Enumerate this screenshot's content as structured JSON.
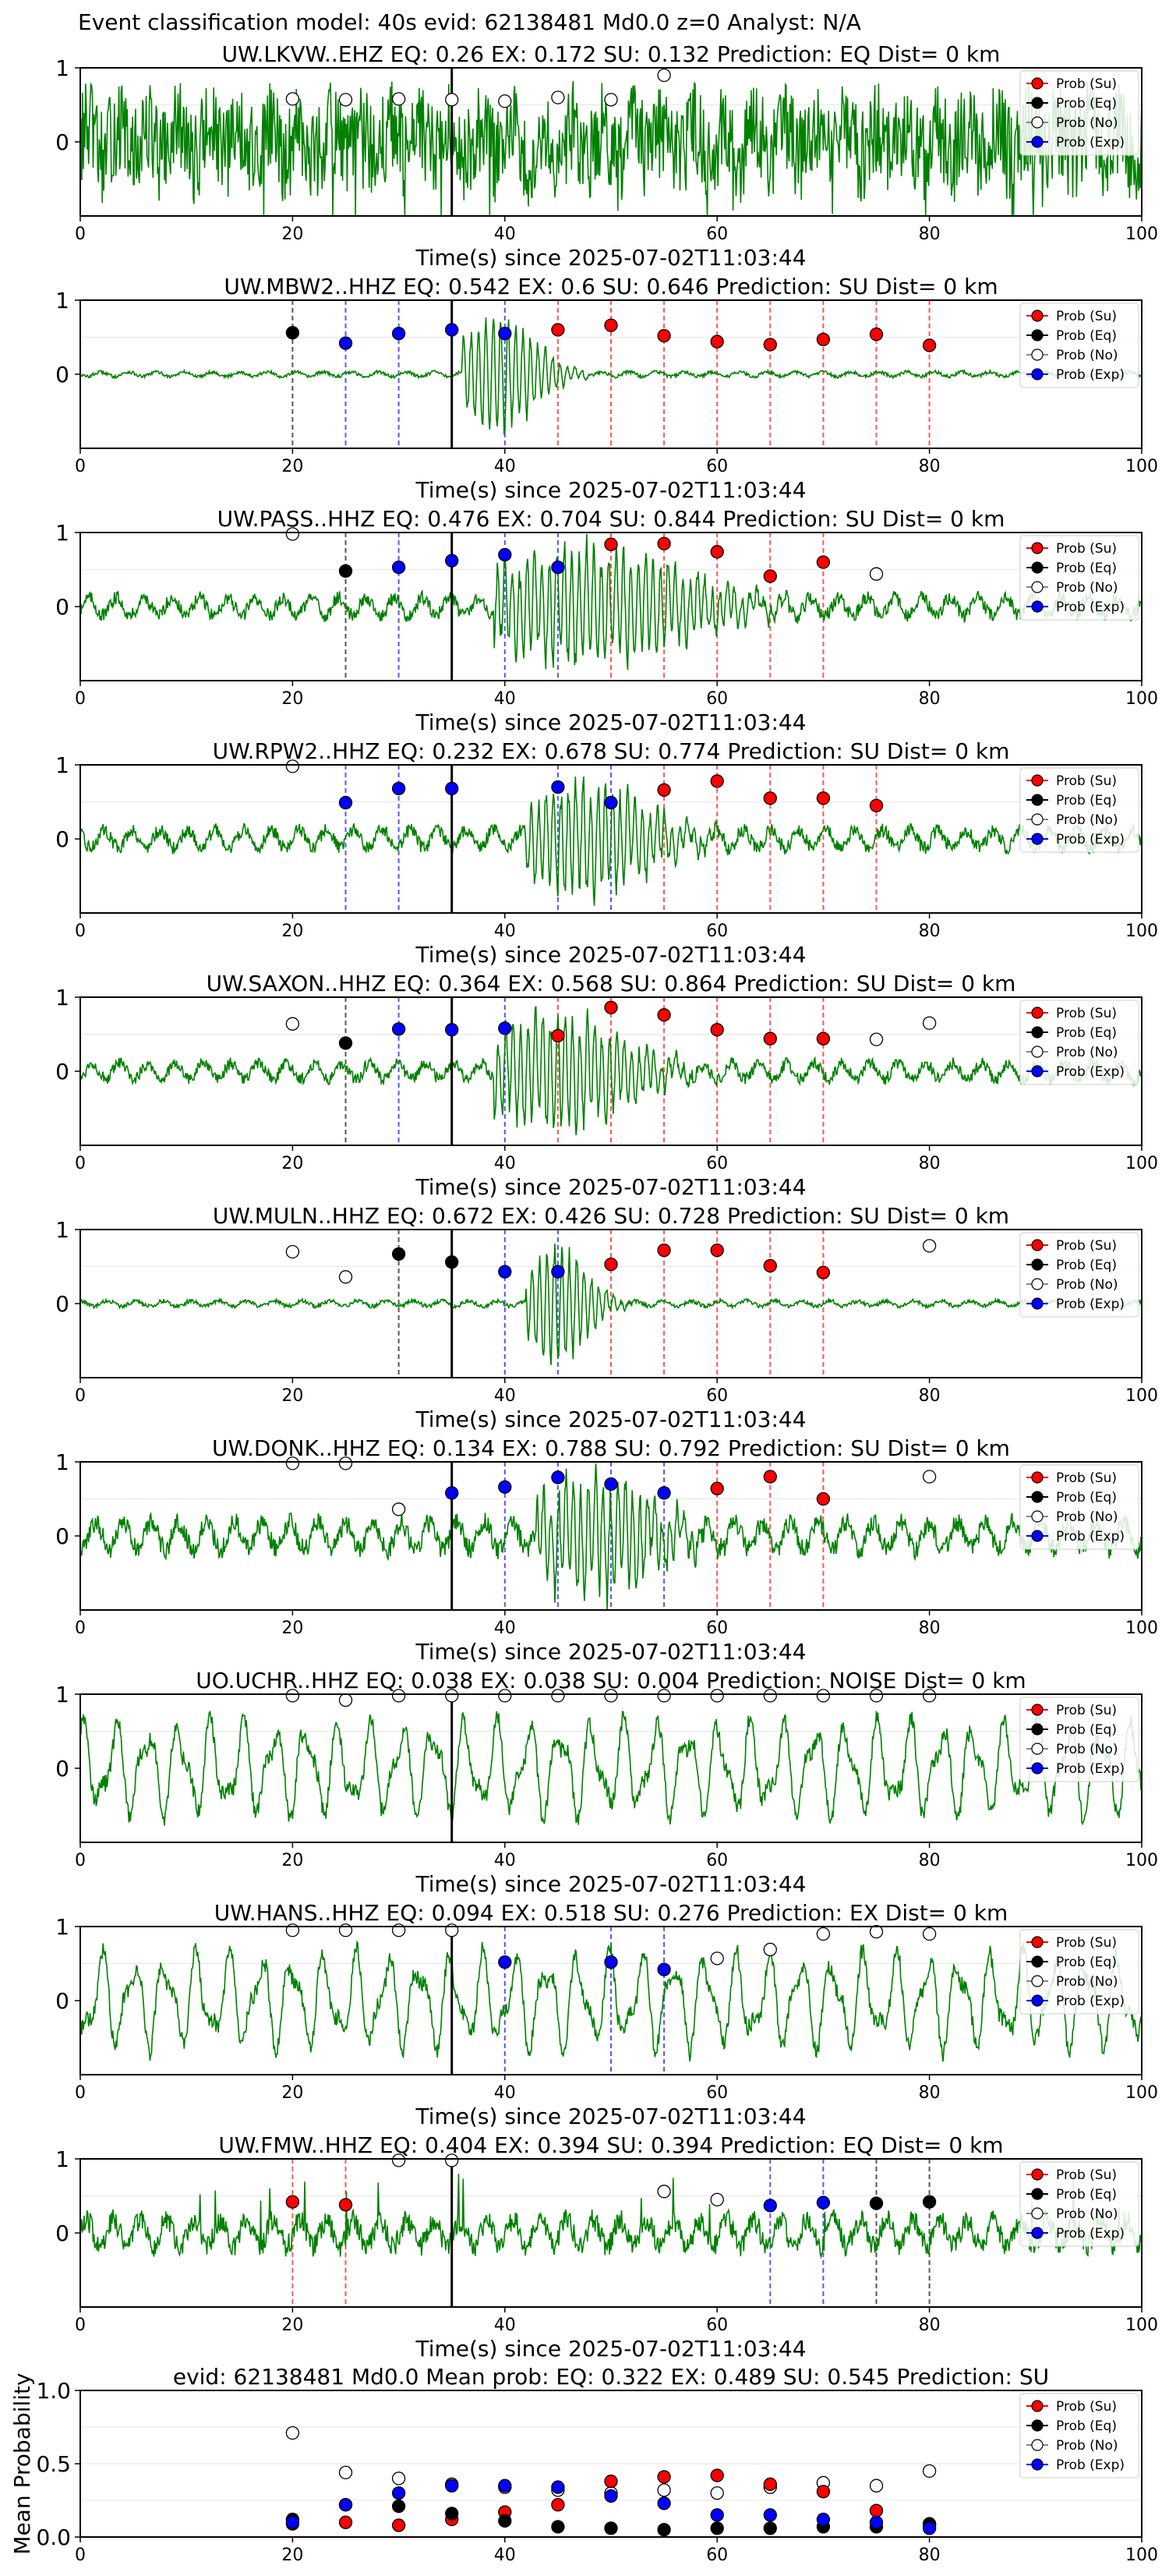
{
  "figure_title": "Event classification model: 40s evid: 62138481 Md0.0 z=0 Analyst: N/A",
  "colors": {
    "waveform": "#008000",
    "su": "#ff0000",
    "eq": "#000000",
    "no": "#ffffff",
    "exp": "#0000ff",
    "arrival_line": "#000000"
  },
  "legend_labels": [
    "Prob (Su)",
    "Prob (Eq)",
    "Prob (No)",
    "Prob (Exp)"
  ],
  "chart_data": {
    "type": "scatter",
    "xlabel": "Time(s) since 2025-07-02T11:03:44",
    "x_ticks": [
      0,
      20,
      40,
      60,
      80,
      100
    ],
    "xlim": [
      0,
      100
    ],
    "arrival_time": 35,
    "panels": [
      {
        "title": "UW.LKVW..EHZ   EQ: 0.26  EX: 0.172  SU: 0.132   Prediction: EQ    Dist= 0 km",
        "signal": "noisy",
        "amp": 0.8,
        "points": [
          {
            "cls": "no",
            "x": 20,
            "y": 0.58
          },
          {
            "cls": "no",
            "x": 25,
            "y": 0.57
          },
          {
            "cls": "no",
            "x": 30,
            "y": 0.58
          },
          {
            "cls": "no",
            "x": 35,
            "y": 0.57
          },
          {
            "cls": "no",
            "x": 40,
            "y": 0.55
          },
          {
            "cls": "no",
            "x": 45,
            "y": 0.6
          },
          {
            "cls": "no",
            "x": 50,
            "y": 0.57
          },
          {
            "cls": "no",
            "x": 55,
            "y": 0.9
          }
        ]
      },
      {
        "title": "UW.MBW2..HHZ   EQ: 0.542  EX: 0.6  SU: 0.646   Prediction: SU    Dist= 0 km",
        "signal": "event",
        "amp": 0.05,
        "event_start": 36,
        "event_end": 48,
        "points": [
          {
            "cls": "eq",
            "x": 20,
            "y": 0.56
          },
          {
            "cls": "exp",
            "x": 25,
            "y": 0.42
          },
          {
            "cls": "exp",
            "x": 30,
            "y": 0.55
          },
          {
            "cls": "exp",
            "x": 35,
            "y": 0.6
          },
          {
            "cls": "exp",
            "x": 40,
            "y": 0.55
          },
          {
            "cls": "su",
            "x": 45,
            "y": 0.6
          },
          {
            "cls": "su",
            "x": 50,
            "y": 0.66
          },
          {
            "cls": "su",
            "x": 55,
            "y": 0.52
          },
          {
            "cls": "su",
            "x": 60,
            "y": 0.44
          },
          {
            "cls": "su",
            "x": 65,
            "y": 0.4
          },
          {
            "cls": "su",
            "x": 70,
            "y": 0.47
          },
          {
            "cls": "su",
            "x": 75,
            "y": 0.54
          },
          {
            "cls": "su",
            "x": 80,
            "y": 0.39
          }
        ]
      },
      {
        "title": "UW.PASS..HHZ   EQ: 0.476  EX: 0.704  SU: 0.844   Prediction: SU    Dist= 0 km",
        "signal": "event",
        "amp": 0.2,
        "event_start": 39,
        "event_end": 70,
        "points": [
          {
            "cls": "no",
            "x": 20,
            "y": 0.98
          },
          {
            "cls": "eq",
            "x": 25,
            "y": 0.48
          },
          {
            "cls": "exp",
            "x": 30,
            "y": 0.53
          },
          {
            "cls": "exp",
            "x": 35,
            "y": 0.62
          },
          {
            "cls": "exp",
            "x": 40,
            "y": 0.7
          },
          {
            "cls": "exp",
            "x": 45,
            "y": 0.53
          },
          {
            "cls": "su",
            "x": 50,
            "y": 0.84
          },
          {
            "cls": "su",
            "x": 55,
            "y": 0.85
          },
          {
            "cls": "su",
            "x": 60,
            "y": 0.74
          },
          {
            "cls": "su",
            "x": 65,
            "y": 0.41
          },
          {
            "cls": "su",
            "x": 70,
            "y": 0.6
          },
          {
            "cls": "no",
            "x": 75,
            "y": 0.44
          }
        ]
      },
      {
        "title": "UW.RPW2..HHZ   EQ: 0.232  EX: 0.678  SU: 0.774   Prediction: SU    Dist= 0 km",
        "signal": "event",
        "amp": 0.2,
        "event_start": 42,
        "event_end": 62,
        "points": [
          {
            "cls": "no",
            "x": 20,
            "y": 0.98
          },
          {
            "cls": "exp",
            "x": 25,
            "y": 0.49
          },
          {
            "cls": "exp",
            "x": 30,
            "y": 0.68
          },
          {
            "cls": "exp",
            "x": 35,
            "y": 0.68
          },
          {
            "cls": "exp",
            "x": 45,
            "y": 0.7
          },
          {
            "cls": "exp",
            "x": 50,
            "y": 0.49
          },
          {
            "cls": "su",
            "x": 55,
            "y": 0.66
          },
          {
            "cls": "su",
            "x": 60,
            "y": 0.78
          },
          {
            "cls": "su",
            "x": 65,
            "y": 0.55
          },
          {
            "cls": "su",
            "x": 70,
            "y": 0.55
          },
          {
            "cls": "su",
            "x": 75,
            "y": 0.45
          }
        ]
      },
      {
        "title": "UW.SAXON..HHZ   EQ: 0.364  EX: 0.568  SU: 0.864   Prediction: SU    Dist= 0 km",
        "signal": "event",
        "amp": 0.18,
        "event_start": 39,
        "event_end": 60,
        "points": [
          {
            "cls": "no",
            "x": 20,
            "y": 0.64
          },
          {
            "cls": "eq",
            "x": 25,
            "y": 0.38
          },
          {
            "cls": "exp",
            "x": 30,
            "y": 0.57
          },
          {
            "cls": "exp",
            "x": 35,
            "y": 0.56
          },
          {
            "cls": "exp",
            "x": 40,
            "y": 0.58
          },
          {
            "cls": "su",
            "x": 45,
            "y": 0.48
          },
          {
            "cls": "su",
            "x": 50,
            "y": 0.86
          },
          {
            "cls": "su",
            "x": 55,
            "y": 0.76
          },
          {
            "cls": "su",
            "x": 60,
            "y": 0.56
          },
          {
            "cls": "su",
            "x": 65,
            "y": 0.44
          },
          {
            "cls": "su",
            "x": 70,
            "y": 0.44
          },
          {
            "cls": "no",
            "x": 75,
            "y": 0.43
          },
          {
            "cls": "no",
            "x": 80,
            "y": 0.65
          }
        ]
      },
      {
        "title": "UW.MULN..HHZ   EQ: 0.672  EX: 0.426  SU: 0.728   Prediction: SU    Dist= 0 km",
        "signal": "event",
        "amp": 0.06,
        "event_start": 42,
        "event_end": 52,
        "points": [
          {
            "cls": "no",
            "x": 20,
            "y": 0.7
          },
          {
            "cls": "no",
            "x": 25,
            "y": 0.36
          },
          {
            "cls": "eq",
            "x": 30,
            "y": 0.67
          },
          {
            "cls": "eq",
            "x": 35,
            "y": 0.56
          },
          {
            "cls": "exp",
            "x": 40,
            "y": 0.43
          },
          {
            "cls": "exp",
            "x": 45,
            "y": 0.43
          },
          {
            "cls": "su",
            "x": 50,
            "y": 0.53
          },
          {
            "cls": "su",
            "x": 55,
            "y": 0.72
          },
          {
            "cls": "su",
            "x": 60,
            "y": 0.72
          },
          {
            "cls": "su",
            "x": 65,
            "y": 0.51
          },
          {
            "cls": "su",
            "x": 70,
            "y": 0.42
          },
          {
            "cls": "no",
            "x": 80,
            "y": 0.78
          }
        ]
      },
      {
        "title": "UW.DONK..HHZ   EQ: 0.134  EX: 0.788  SU: 0.792   Prediction: SU    Dist= 0 km",
        "signal": "event",
        "amp": 0.3,
        "event_start": 43,
        "event_end": 62,
        "points": [
          {
            "cls": "no",
            "x": 20,
            "y": 0.98
          },
          {
            "cls": "no",
            "x": 25,
            "y": 0.98
          },
          {
            "cls": "no",
            "x": 30,
            "y": 0.36
          },
          {
            "cls": "exp",
            "x": 35,
            "y": 0.58
          },
          {
            "cls": "exp",
            "x": 40,
            "y": 0.66
          },
          {
            "cls": "exp",
            "x": 45,
            "y": 0.79
          },
          {
            "cls": "exp",
            "x": 50,
            "y": 0.7
          },
          {
            "cls": "exp",
            "x": 55,
            "y": 0.58
          },
          {
            "cls": "su",
            "x": 60,
            "y": 0.64
          },
          {
            "cls": "su",
            "x": 65,
            "y": 0.8
          },
          {
            "cls": "su",
            "x": 70,
            "y": 0.5
          },
          {
            "cls": "no",
            "x": 80,
            "y": 0.8
          }
        ]
      },
      {
        "title": "UO.UCHR..HHZ   EQ: 0.038  EX: 0.038  SU: 0.004   Prediction: NOISE    Dist= 0 km",
        "signal": "oscillation",
        "amp": 0.65,
        "points": [
          {
            "cls": "no",
            "x": 20,
            "y": 0.98
          },
          {
            "cls": "no",
            "x": 25,
            "y": 0.92
          },
          {
            "cls": "no",
            "x": 30,
            "y": 0.98
          },
          {
            "cls": "no",
            "x": 35,
            "y": 0.98
          },
          {
            "cls": "no",
            "x": 40,
            "y": 0.98
          },
          {
            "cls": "no",
            "x": 45,
            "y": 0.98
          },
          {
            "cls": "no",
            "x": 50,
            "y": 0.98
          },
          {
            "cls": "no",
            "x": 55,
            "y": 0.98
          },
          {
            "cls": "no",
            "x": 60,
            "y": 0.98
          },
          {
            "cls": "no",
            "x": 65,
            "y": 0.98
          },
          {
            "cls": "no",
            "x": 70,
            "y": 0.98
          },
          {
            "cls": "no",
            "x": 75,
            "y": 0.98
          },
          {
            "cls": "no",
            "x": 80,
            "y": 0.98
          }
        ]
      },
      {
        "title": "UW.HANS..HHZ   EQ: 0.094  EX: 0.518  SU: 0.276   Prediction: EX    Dist= 0 km",
        "signal": "oscillation",
        "amp": 0.65,
        "points": [
          {
            "cls": "no",
            "x": 20,
            "y": 0.95
          },
          {
            "cls": "no",
            "x": 25,
            "y": 0.95
          },
          {
            "cls": "no",
            "x": 30,
            "y": 0.95
          },
          {
            "cls": "no",
            "x": 35,
            "y": 0.95
          },
          {
            "cls": "exp",
            "x": 40,
            "y": 0.52
          },
          {
            "cls": "exp",
            "x": 50,
            "y": 0.52
          },
          {
            "cls": "exp",
            "x": 55,
            "y": 0.42
          },
          {
            "cls": "no",
            "x": 60,
            "y": 0.57
          },
          {
            "cls": "no",
            "x": 65,
            "y": 0.69
          },
          {
            "cls": "no",
            "x": 70,
            "y": 0.9
          },
          {
            "cls": "no",
            "x": 75,
            "y": 0.93
          },
          {
            "cls": "no",
            "x": 80,
            "y": 0.9
          }
        ]
      },
      {
        "title": "UW.FMW..HHZ   EQ: 0.404  EX: 0.394  SU: 0.394   Prediction: EQ    Dist= 0 km",
        "signal": "noisy_osc",
        "amp": 0.25,
        "points": [
          {
            "cls": "su",
            "x": 20,
            "y": 0.42
          },
          {
            "cls": "su",
            "x": 25,
            "y": 0.38
          },
          {
            "cls": "no",
            "x": 30,
            "y": 0.98
          },
          {
            "cls": "no",
            "x": 35,
            "y": 0.98
          },
          {
            "cls": "no",
            "x": 55,
            "y": 0.56
          },
          {
            "cls": "no",
            "x": 60,
            "y": 0.45
          },
          {
            "cls": "exp",
            "x": 65,
            "y": 0.37
          },
          {
            "cls": "exp",
            "x": 70,
            "y": 0.41
          },
          {
            "cls": "eq",
            "x": 75,
            "y": 0.4
          },
          {
            "cls": "eq",
            "x": 80,
            "y": 0.42
          }
        ]
      }
    ],
    "mean_panel": {
      "title": "evid: 62138481  Md0.0   Mean prob:   EQ: 0.322  EX: 0.489  SU: 0.545   Prediction: SU",
      "ylabel": "Mean Probability",
      "ylim": [
        0,
        1
      ],
      "y_ticks": [
        0.0,
        0.5,
        1.0
      ],
      "y_tick_labels": [
        "0.0",
        "0.5",
        "1.0"
      ],
      "x": [
        20,
        25,
        30,
        35,
        40,
        45,
        50,
        55,
        60,
        65,
        70,
        75,
        80
      ],
      "series": [
        {
          "cls": "no",
          "values": [
            0.71,
            0.44,
            0.4,
            0.36,
            0.34,
            0.32,
            0.3,
            0.32,
            0.3,
            0.34,
            0.37,
            0.35,
            0.45
          ]
        },
        {
          "cls": "su",
          "values": [
            0.09,
            0.1,
            0.08,
            0.12,
            0.17,
            0.22,
            0.38,
            0.41,
            0.42,
            0.36,
            0.31,
            0.18,
            0.08
          ]
        },
        {
          "cls": "eq",
          "values": [
            0.12,
            0.22,
            0.21,
            0.16,
            0.11,
            0.07,
            0.06,
            0.05,
            0.06,
            0.06,
            0.07,
            0.07,
            0.09
          ]
        },
        {
          "cls": "exp",
          "values": [
            0.1,
            0.22,
            0.3,
            0.35,
            0.35,
            0.34,
            0.28,
            0.23,
            0.15,
            0.15,
            0.12,
            0.1,
            0.06
          ]
        }
      ]
    }
  }
}
